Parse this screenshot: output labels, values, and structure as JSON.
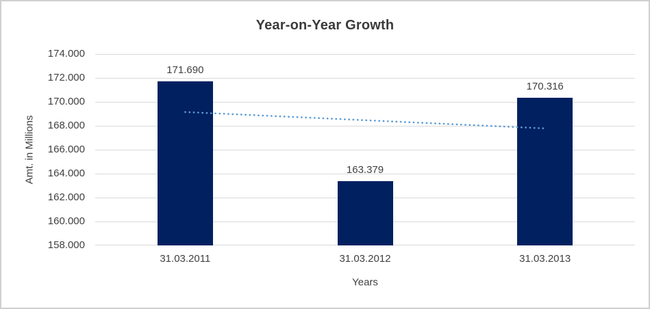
{
  "chart_data": {
    "type": "bar",
    "title": "Year-on-Year Growth",
    "xlabel": "Years",
    "ylabel": "Amt. in Millions",
    "categories": [
      "31.03.2011",
      "31.03.2012",
      "31.03.2013"
    ],
    "values": [
      171.69,
      163.379,
      170.316
    ],
    "data_labels": [
      "171.690",
      "163.379",
      "170.316"
    ],
    "y_ticks": [
      "174.000",
      "172.000",
      "170.000",
      "168.000",
      "166.000",
      "164.000",
      "162.000",
      "160.000",
      "158.000"
    ],
    "ylim": [
      158,
      174
    ],
    "grid": true,
    "legend": "none",
    "bar_color": "#002060",
    "gridline_color": "#D9D9D9",
    "trendline": {
      "type": "linear",
      "style": "dotted",
      "color": "#5B9BD5",
      "start_value": 169.15,
      "end_value": 167.78
    }
  }
}
